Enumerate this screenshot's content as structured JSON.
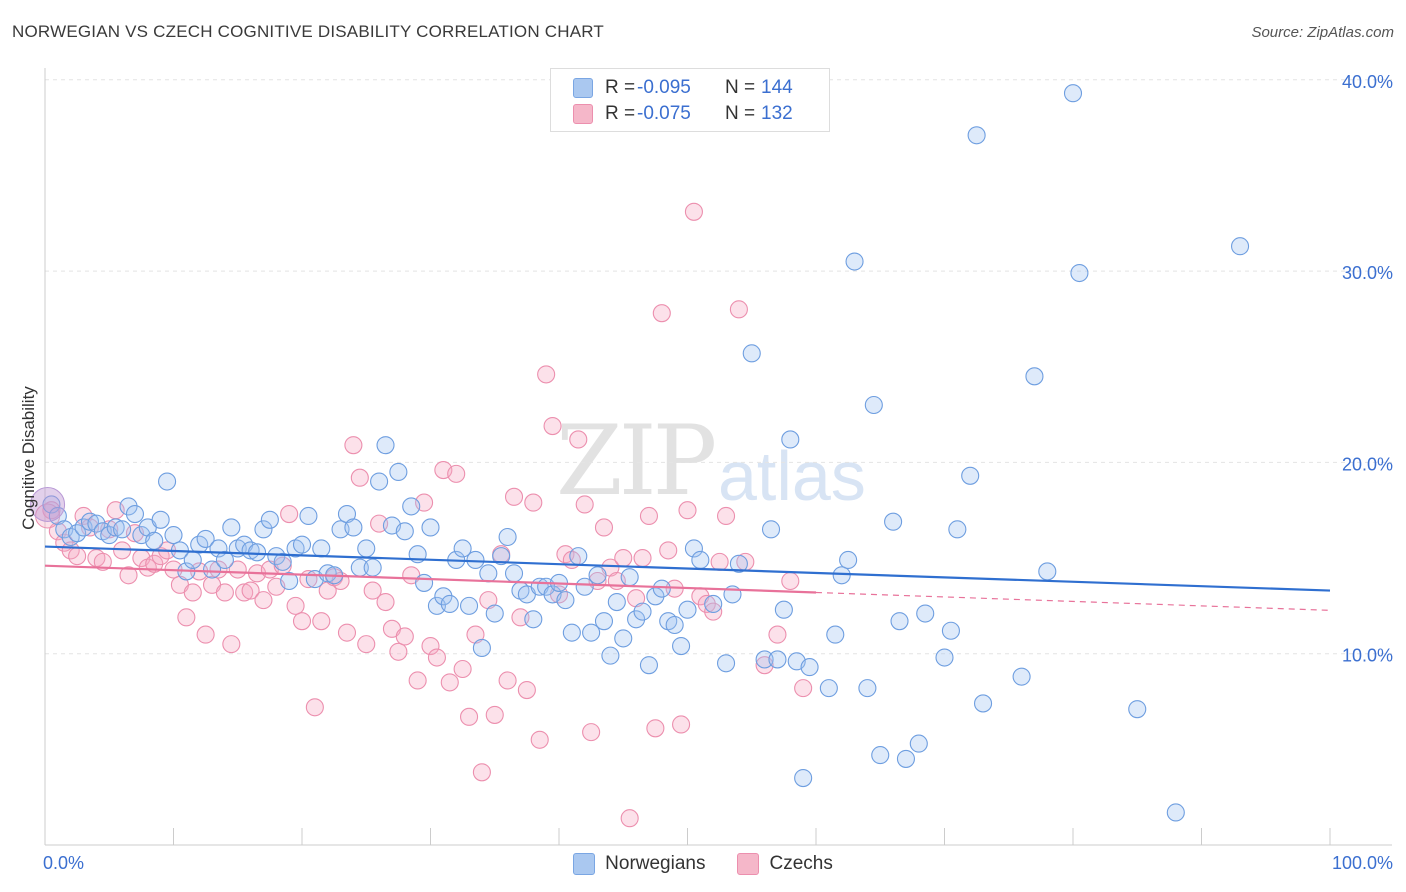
{
  "title": "NORWEGIAN VS CZECH COGNITIVE DISABILITY CORRELATION CHART",
  "source": "Source: ZipAtlas.com",
  "watermark": {
    "main": "ZIP",
    "sub": "atlas"
  },
  "legend": {
    "rows": [
      {
        "r_label": "R =",
        "r_value": "-0.095",
        "n_label": "N =",
        "n_value": "144",
        "color": "#aac8f0"
      },
      {
        "r_label": "R =",
        "r_value": "-0.075",
        "n_label": "N =",
        "n_value": "132",
        "color": "#f5b7c9"
      }
    ]
  },
  "bottom_legend": [
    {
      "label": "Norwegians",
      "color": "#aac8f0"
    },
    {
      "label": "Czechs",
      "color": "#f5b7c9"
    }
  ],
  "chart_data": {
    "type": "scatter",
    "title": "NORWEGIAN VS CZECH COGNITIVE DISABILITY CORRELATION CHART",
    "xlabel": "",
    "ylabel": "Cognitive Disability",
    "xlim": [
      0,
      100
    ],
    "ylim": [
      0,
      40
    ],
    "x_tick_labels": [
      "0.0%",
      "100.0%"
    ],
    "y_tick_labels": [
      "10.0%",
      "20.0%",
      "30.0%",
      "40.0%"
    ],
    "y_ticks": [
      10,
      20,
      30,
      40
    ],
    "grid": true,
    "colors": {
      "norwegians": "#3b78d8",
      "czechs": "#e8729a"
    },
    "series": [
      {
        "name": "Norwegians",
        "trend": {
          "x": [
            0,
            100
          ],
          "y": [
            15.6,
            13.3
          ]
        },
        "points": [
          [
            0.5,
            17.8
          ],
          [
            1,
            17.2
          ],
          [
            1.5,
            16.5
          ],
          [
            2,
            16.1
          ],
          [
            2.5,
            16.3
          ],
          [
            3,
            16.6
          ],
          [
            3.5,
            16.9
          ],
          [
            4,
            16.8
          ],
          [
            4.5,
            16.4
          ],
          [
            5,
            16.2
          ],
          [
            5.5,
            16.6
          ],
          [
            6,
            16.5
          ],
          [
            6.5,
            17.7
          ],
          [
            7,
            17.3
          ],
          [
            7.5,
            16.2
          ],
          [
            8,
            16.6
          ],
          [
            8.5,
            15.9
          ],
          [
            9,
            17
          ],
          [
            9.5,
            19
          ],
          [
            10,
            16.2
          ],
          [
            10.5,
            15.4
          ],
          [
            11,
            14.3
          ],
          [
            11.5,
            14.9
          ],
          [
            12,
            15.7
          ],
          [
            12.5,
            16
          ],
          [
            13,
            14.4
          ],
          [
            13.5,
            15.5
          ],
          [
            14,
            14.9
          ],
          [
            14.5,
            16.6
          ],
          [
            15,
            15.5
          ],
          [
            15.5,
            15.7
          ],
          [
            16,
            15.4
          ],
          [
            16.5,
            15.3
          ],
          [
            17,
            16.5
          ],
          [
            17.5,
            17
          ],
          [
            18,
            15.1
          ],
          [
            18.5,
            14.8
          ],
          [
            19,
            13.8
          ],
          [
            19.5,
            15.5
          ],
          [
            20,
            15.7
          ],
          [
            20.5,
            17.2
          ],
          [
            21,
            13.9
          ],
          [
            21.5,
            15.5
          ],
          [
            22,
            14.2
          ],
          [
            22.5,
            14.1
          ],
          [
            23,
            16.5
          ],
          [
            23.5,
            17.3
          ],
          [
            24,
            16.6
          ],
          [
            24.5,
            14.5
          ],
          [
            25,
            15.5
          ],
          [
            25.5,
            14.5
          ],
          [
            26,
            19
          ],
          [
            26.5,
            20.9
          ],
          [
            27,
            16.7
          ],
          [
            27.5,
            19.5
          ],
          [
            28,
            16.4
          ],
          [
            28.5,
            17.7
          ],
          [
            29,
            15.2
          ],
          [
            29.5,
            13.7
          ],
          [
            30,
            16.6
          ],
          [
            30.5,
            12.5
          ],
          [
            31,
            13
          ],
          [
            31.5,
            12.6
          ],
          [
            32,
            14.9
          ],
          [
            32.5,
            15.5
          ],
          [
            33,
            12.5
          ],
          [
            33.5,
            14.9
          ],
          [
            34,
            10.3
          ],
          [
            34.5,
            14.2
          ],
          [
            35,
            12.1
          ],
          [
            35.5,
            15.1
          ],
          [
            36,
            16.1
          ],
          [
            36.5,
            14.2
          ],
          [
            37,
            13.3
          ],
          [
            37.5,
            13.1
          ],
          [
            38,
            11.8
          ],
          [
            38.5,
            13.5
          ],
          [
            39,
            13.5
          ],
          [
            39.5,
            13.1
          ],
          [
            40,
            13.7
          ],
          [
            40.5,
            12.8
          ],
          [
            41,
            11.1
          ],
          [
            41.5,
            15.1
          ],
          [
            42,
            13.5
          ],
          [
            42.5,
            11.1
          ],
          [
            43,
            14.1
          ],
          [
            43.5,
            11.7
          ],
          [
            44,
            9.9
          ],
          [
            44.5,
            12.7
          ],
          [
            45,
            10.8
          ],
          [
            45.5,
            14
          ],
          [
            46,
            11.8
          ],
          [
            46.5,
            12.2
          ],
          [
            47,
            9.4
          ],
          [
            47.5,
            13
          ],
          [
            48,
            13.4
          ],
          [
            48.5,
            11.7
          ],
          [
            49,
            11.5
          ],
          [
            49.5,
            10.4
          ],
          [
            50,
            12.3
          ],
          [
            50.5,
            15.5
          ],
          [
            51,
            14.9
          ],
          [
            52,
            12.6
          ],
          [
            53,
            9.5
          ],
          [
            53.5,
            13.1
          ],
          [
            54,
            14.7
          ],
          [
            55,
            25.7
          ],
          [
            56,
            9.7
          ],
          [
            56.5,
            16.5
          ],
          [
            57,
            9.7
          ],
          [
            57.5,
            12.3
          ],
          [
            58,
            21.2
          ],
          [
            58.5,
            9.6
          ],
          [
            59,
            3.5
          ],
          [
            59.5,
            9.3
          ],
          [
            61,
            8.2
          ],
          [
            61.5,
            11
          ],
          [
            62,
            14.1
          ],
          [
            62.5,
            14.9
          ],
          [
            63,
            30.5
          ],
          [
            64,
            8.2
          ],
          [
            64.5,
            23
          ],
          [
            65,
            4.7
          ],
          [
            66,
            16.9
          ],
          [
            66.5,
            11.7
          ],
          [
            67,
            4.5
          ],
          [
            68,
            5.3
          ],
          [
            68.5,
            12.1
          ],
          [
            70,
            9.8
          ],
          [
            70.5,
            11.2
          ],
          [
            71,
            16.5
          ],
          [
            72,
            19.3
          ],
          [
            72.5,
            37.1
          ],
          [
            73,
            7.4
          ],
          [
            76,
            8.8
          ],
          [
            77,
            24.5
          ],
          [
            78,
            14.3
          ],
          [
            80,
            39.3
          ],
          [
            80.5,
            29.9
          ],
          [
            85,
            7.1
          ],
          [
            88,
            1.7
          ],
          [
            93,
            31.3
          ]
        ]
      },
      {
        "name": "Czechs",
        "trend": {
          "x": [
            0,
            60
          ],
          "y": [
            14.6,
            13.2
          ]
        },
        "points": [
          [
            0.5,
            17.5
          ],
          [
            1,
            16.4
          ],
          [
            1.5,
            15.8
          ],
          [
            2,
            15.4
          ],
          [
            2.5,
            15.1
          ],
          [
            3,
            17.2
          ],
          [
            3.5,
            16.6
          ],
          [
            4,
            15
          ],
          [
            4.5,
            14.8
          ],
          [
            5,
            16.5
          ],
          [
            5.5,
            17.5
          ],
          [
            6,
            15.4
          ],
          [
            6.5,
            14.1
          ],
          [
            7,
            16.3
          ],
          [
            7.5,
            15
          ],
          [
            8,
            14.5
          ],
          [
            8.5,
            14.7
          ],
          [
            9,
            15.1
          ],
          [
            9.5,
            15.4
          ],
          [
            10,
            14.4
          ],
          [
            10.5,
            13.6
          ],
          [
            11,
            11.9
          ],
          [
            11.5,
            13.2
          ],
          [
            12,
            14.3
          ],
          [
            12.5,
            11
          ],
          [
            13,
            13.6
          ],
          [
            13.5,
            14.4
          ],
          [
            14,
            13.2
          ],
          [
            14.5,
            10.5
          ],
          [
            15,
            14.4
          ],
          [
            15.5,
            13.2
          ],
          [
            16,
            13.3
          ],
          [
            16.5,
            14.2
          ],
          [
            17,
            12.8
          ],
          [
            17.5,
            14.4
          ],
          [
            18,
            13.5
          ],
          [
            18.5,
            14.6
          ],
          [
            19,
            17.3
          ],
          [
            19.5,
            12.5
          ],
          [
            20,
            11.7
          ],
          [
            20.5,
            13.9
          ],
          [
            21,
            7.2
          ],
          [
            21.5,
            11.7
          ],
          [
            22,
            13.3
          ],
          [
            22.5,
            14
          ],
          [
            23,
            13.8
          ],
          [
            23.5,
            11.1
          ],
          [
            24,
            20.9
          ],
          [
            24.5,
            19.2
          ],
          [
            25,
            10.5
          ],
          [
            25.5,
            13.3
          ],
          [
            26,
            16.8
          ],
          [
            26.5,
            12.7
          ],
          [
            27,
            11.3
          ],
          [
            27.5,
            10.1
          ],
          [
            28,
            10.9
          ],
          [
            28.5,
            14.1
          ],
          [
            29,
            8.6
          ],
          [
            29.5,
            17.9
          ],
          [
            30,
            10.4
          ],
          [
            30.5,
            9.8
          ],
          [
            31,
            19.6
          ],
          [
            31.5,
            8.5
          ],
          [
            32,
            19.4
          ],
          [
            32.5,
            9.2
          ],
          [
            33,
            6.7
          ],
          [
            33.5,
            11
          ],
          [
            34,
            3.8
          ],
          [
            34.5,
            12.8
          ],
          [
            35,
            6.8
          ],
          [
            35.5,
            15.2
          ],
          [
            36,
            8.6
          ],
          [
            36.5,
            18.2
          ],
          [
            37,
            11.9
          ],
          [
            37.5,
            8.1
          ],
          [
            38,
            17.9
          ],
          [
            38.5,
            5.5
          ],
          [
            39,
            24.6
          ],
          [
            39.5,
            21.9
          ],
          [
            40,
            13.1
          ],
          [
            40.5,
            15.2
          ],
          [
            41,
            14.9
          ],
          [
            41.5,
            21.2
          ],
          [
            42,
            17.8
          ],
          [
            42.5,
            5.9
          ],
          [
            43,
            13.8
          ],
          [
            43.5,
            16.6
          ],
          [
            44,
            14.5
          ],
          [
            44.5,
            13.8
          ],
          [
            45,
            15
          ],
          [
            45.5,
            1.4
          ],
          [
            46,
            12.9
          ],
          [
            46.5,
            15
          ],
          [
            47,
            17.2
          ],
          [
            47.5,
            6.1
          ],
          [
            48,
            27.8
          ],
          [
            48.5,
            15.4
          ],
          [
            49,
            13.4
          ],
          [
            49.5,
            6.3
          ],
          [
            50,
            17.5
          ],
          [
            50.5,
            33.1
          ],
          [
            51,
            13
          ],
          [
            51.5,
            12.6
          ],
          [
            52,
            12.2
          ],
          [
            52.5,
            14.8
          ],
          [
            53,
            17.2
          ],
          [
            54,
            28
          ],
          [
            54.5,
            14.8
          ],
          [
            56,
            9.4
          ],
          [
            57,
            11
          ],
          [
            58,
            13.8
          ],
          [
            59,
            8.2
          ]
        ]
      }
    ]
  }
}
